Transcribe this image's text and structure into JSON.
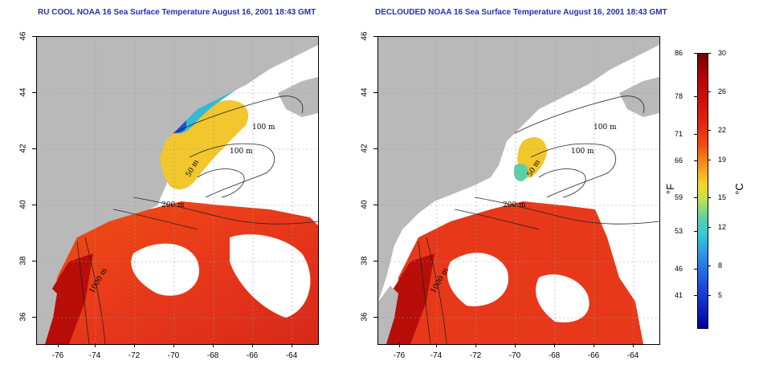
{
  "titles": {
    "left": "RU COOL NOAA 16 Sea Surface Temperature August 16, 2001 18:43 GMT",
    "right": "DECLOUDED NOAA 16 Sea Surface Temperature August 16, 2001 18:43 GMT"
  },
  "axes": {
    "x_ticks": [
      "-76",
      "-74",
      "-72",
      "-70",
      "-68",
      "-66",
      "-64"
    ],
    "y_ticks": [
      "46",
      "44",
      "42",
      "40",
      "38",
      "36"
    ]
  },
  "contour_labels": {
    "d100a": "100 m",
    "d100b": "100 m",
    "d50": "50 m",
    "d200": "200 m",
    "d1000": "1000 m",
    "d50b": "50 m"
  },
  "colorbar": {
    "fahrenheit_label": "°F",
    "celsius_label": "°C",
    "fahrenheit_ticks": [
      "86",
      "78",
      "71",
      "66",
      "59",
      "53",
      "46",
      "41"
    ],
    "celsius_ticks": [
      "30",
      "26",
      "22",
      "19",
      "15",
      "12",
      "8",
      "5"
    ]
  },
  "colors": {
    "land": "#b9b9b9",
    "cloud": "#ffffff",
    "warm": "#e8381a",
    "hot": "#b80d08",
    "cool": "#f2c62d",
    "cold": "#2b8ee6",
    "title": "#2b2bb5"
  }
}
